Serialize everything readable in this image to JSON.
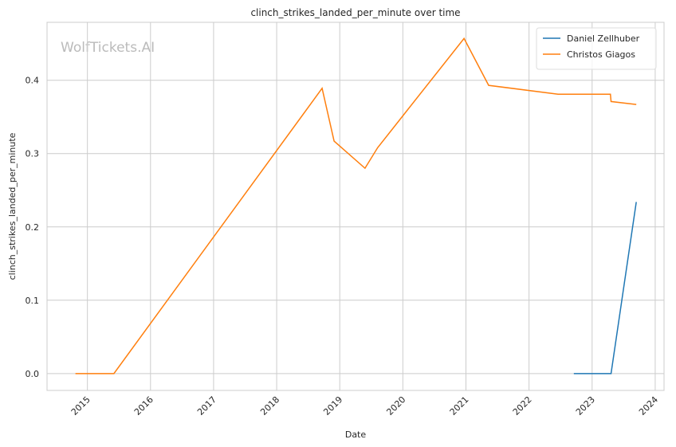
{
  "chart_data": {
    "type": "line",
    "title": "clinch_strikes_landed_per_minute over time",
    "xlabel": "Date",
    "ylabel": "clinch_strikes_landed_per_minute",
    "watermark": "WolfTickets.AI",
    "series": [
      {
        "name": "Daniel Zellhuber",
        "color": "#1f77b4",
        "x": [
          2022.71,
          2023.3,
          2023.7
        ],
        "values": [
          0,
          0,
          0.234
        ]
      },
      {
        "name": "Christos Giagos",
        "color": "#ff7f0e",
        "x": [
          2014.81,
          2015.42,
          2018.72,
          2018.91,
          2019.4,
          2019.6,
          2020.97,
          2021.36,
          2022.46,
          2023.29,
          2023.3,
          2023.7
        ],
        "values": [
          0,
          0,
          0.389,
          0.317,
          0.28,
          0.308,
          0.457,
          0.393,
          0.381,
          0.381,
          0.371,
          0.367
        ]
      }
    ],
    "xlim": [
      2014.36,
      2024.14
    ],
    "xticks": [
      2015,
      2016,
      2017,
      2018,
      2019,
      2020,
      2021,
      2022,
      2023,
      2024
    ],
    "ylim": [
      -0.023,
      0.479
    ],
    "yticks": [
      {
        "value": 0,
        "label": "0.0"
      },
      0.1,
      0.2,
      0.3,
      0.4
    ],
    "grid": true,
    "legend": "upper right"
  }
}
